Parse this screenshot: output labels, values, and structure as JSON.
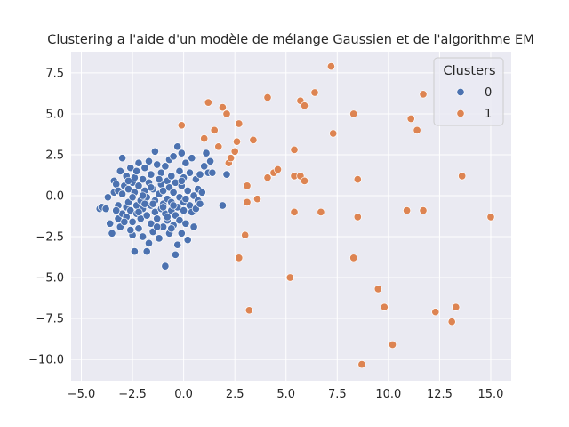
{
  "chart_data": {
    "type": "scatter",
    "title": "Clustering a l'aide d'un modèle de mélange Gaussien et de l'algorithme EM",
    "xlabel": "",
    "ylabel": "",
    "xlim": [
      -5.5,
      16.0
    ],
    "ylim": [
      -11.3,
      8.8
    ],
    "xticks": [
      -5.0,
      -2.5,
      0.0,
      2.5,
      5.0,
      7.5,
      10.0,
      12.5,
      15.0
    ],
    "xtick_labels": [
      "−5.0",
      "−2.5",
      "0.0",
      "2.5",
      "5.0",
      "7.5",
      "10.0",
      "12.5",
      "15.0"
    ],
    "yticks": [
      7.5,
      5.0,
      2.5,
      0.0,
      -2.5,
      -5.0,
      -7.5,
      -10.0
    ],
    "ytick_labels": [
      "7.5",
      "5.0",
      "2.5",
      "0.0",
      "−2.5",
      "−5.0",
      "−7.5",
      "−10.0"
    ],
    "grid": true,
    "legend": {
      "title": "Clusters",
      "placement": "top-right"
    },
    "series": [
      {
        "name": "0",
        "color": "#4c72b0",
        "points": [
          [
            -4.1,
            -0.8
          ],
          [
            -4.0,
            -0.7
          ],
          [
            -3.8,
            -0.8
          ],
          [
            -3.7,
            -0.1
          ],
          [
            -3.6,
            -1.7
          ],
          [
            -3.5,
            -2.3
          ],
          [
            -3.4,
            0.9
          ],
          [
            -3.4,
            0.2
          ],
          [
            -3.3,
            0.7
          ],
          [
            -3.2,
            -1.4
          ],
          [
            -3.2,
            -0.6
          ],
          [
            -3.2,
            0.3
          ],
          [
            -3.1,
            1.5
          ],
          [
            -3.1,
            -1.9
          ],
          [
            -3.0,
            2.3
          ],
          [
            -3.0,
            -1.1
          ],
          [
            -3.0,
            0.1
          ],
          [
            -2.9,
            0.6
          ],
          [
            -2.8,
            -0.7
          ],
          [
            -2.8,
            1.2
          ],
          [
            -2.8,
            -1.3
          ],
          [
            -2.7,
            0.4
          ],
          [
            -2.7,
            -0.4
          ],
          [
            -2.6,
            1.7
          ],
          [
            -2.6,
            -0.9
          ],
          [
            -2.5,
            -1.6
          ],
          [
            -2.5,
            0.8
          ],
          [
            -2.5,
            -2.4
          ],
          [
            -2.4,
            -3.4
          ],
          [
            -2.4,
            1.1
          ],
          [
            -2.4,
            0.2
          ],
          [
            -2.3,
            -0.6
          ],
          [
            -2.3,
            -1.1
          ],
          [
            -2.3,
            1.5
          ],
          [
            -2.2,
            2.0
          ],
          [
            -2.2,
            -2.0
          ],
          [
            -2.2,
            0.6
          ],
          [
            -2.1,
            -0.3
          ],
          [
            -2.1,
            -1.4
          ],
          [
            -2.0,
            1.0
          ],
          [
            -2.0,
            -0.8
          ],
          [
            -2.0,
            -2.5
          ],
          [
            -1.9,
            0.3
          ],
          [
            -1.9,
            1.7
          ],
          [
            -1.8,
            -1.2
          ],
          [
            -1.8,
            -3.4
          ],
          [
            -1.8,
            -0.1
          ],
          [
            -1.7,
            -2.9
          ],
          [
            -1.7,
            0.8
          ],
          [
            -1.7,
            2.1
          ],
          [
            -1.6,
            -0.6
          ],
          [
            -1.6,
            -1.7
          ],
          [
            -1.6,
            1.3
          ],
          [
            -1.5,
            0.4
          ],
          [
            -1.5,
            -2.2
          ],
          [
            -1.4,
            -1.0
          ],
          [
            -1.4,
            2.7
          ],
          [
            -1.4,
            -0.3
          ],
          [
            -1.3,
            1.9
          ],
          [
            -1.3,
            -1.4
          ],
          [
            -1.2,
            0.1
          ],
          [
            -1.2,
            -2.6
          ],
          [
            -1.1,
            0.7
          ],
          [
            -1.1,
            -0.8
          ],
          [
            -1.1,
            1.4
          ],
          [
            -1.0,
            -1.9
          ],
          [
            -1.0,
            0.3
          ],
          [
            -1.0,
            -0.5
          ],
          [
            -0.9,
            -1.1
          ],
          [
            -0.9,
            1.8
          ],
          [
            -0.9,
            -4.3
          ],
          [
            -0.8,
            0.9
          ],
          [
            -0.8,
            -1.5
          ],
          [
            -0.8,
            -0.2
          ],
          [
            -0.7,
            2.2
          ],
          [
            -0.7,
            -2.3
          ],
          [
            -0.7,
            0.5
          ],
          [
            -0.6,
            -0.9
          ],
          [
            -0.6,
            1.2
          ],
          [
            -0.6,
            -0.4
          ],
          [
            -0.5,
            -1.8
          ],
          [
            -0.5,
            0.2
          ],
          [
            -0.5,
            2.4
          ],
          [
            -0.4,
            -1.2
          ],
          [
            -0.4,
            0.8
          ],
          [
            -0.4,
            -3.6
          ],
          [
            -0.3,
            3.0
          ],
          [
            -0.3,
            -0.7
          ],
          [
            -0.3,
            -3.0
          ],
          [
            -0.2,
            1.5
          ],
          [
            -0.2,
            -0.1
          ],
          [
            -0.2,
            -1.5
          ],
          [
            -0.1,
            0.6
          ],
          [
            -0.1,
            2.6
          ],
          [
            -0.1,
            -2.3
          ],
          [
            0.0,
            -0.9
          ],
          [
            0.0,
            1.1
          ],
          [
            0.0,
            -0.4
          ],
          [
            0.1,
            2.0
          ],
          [
            0.1,
            -1.7
          ],
          [
            0.2,
            0.3
          ],
          [
            0.2,
            -2.7
          ],
          [
            0.3,
            -0.6
          ],
          [
            0.3,
            1.4
          ],
          [
            0.4,
            2.3
          ],
          [
            0.4,
            -1.0
          ],
          [
            0.5,
            0.0
          ],
          [
            0.6,
            -0.8
          ],
          [
            0.6,
            1.0
          ],
          [
            0.7,
            0.4
          ],
          [
            0.7,
            -0.3
          ],
          [
            0.8,
            1.3
          ],
          [
            0.8,
            -0.5
          ],
          [
            0.9,
            0.2
          ],
          [
            1.0,
            1.8
          ],
          [
            1.1,
            2.6
          ],
          [
            1.2,
            1.4
          ],
          [
            1.3,
            2.1
          ],
          [
            1.4,
            1.4
          ],
          [
            1.9,
            -0.6
          ],
          [
            2.1,
            1.3
          ],
          [
            -3.3,
            -0.9
          ],
          [
            -2.9,
            -1.6
          ],
          [
            -2.6,
            -2.1
          ],
          [
            -2.0,
            0.0
          ],
          [
            -1.5,
            -0.5
          ],
          [
            -1.2,
            1.0
          ],
          [
            -0.8,
            -1.3
          ],
          [
            0.1,
            -0.2
          ],
          [
            0.5,
            -1.9
          ],
          [
            -2.5,
            -0.1
          ],
          [
            -1.6,
            0.5
          ],
          [
            -1.9,
            -0.5
          ],
          [
            -1.0,
            -0.7
          ],
          [
            -0.5,
            -0.6
          ],
          [
            -0.1,
            0.9
          ],
          [
            -2.2,
            -1.0
          ],
          [
            -1.3,
            -1.9
          ],
          [
            -2.7,
            0.9
          ],
          [
            -0.6,
            -2.0
          ]
        ]
      },
      {
        "name": "1",
        "color": "#dd8452",
        "points": [
          [
            -0.1,
            4.3
          ],
          [
            1.0,
            3.5
          ],
          [
            1.2,
            5.7
          ],
          [
            1.5,
            4.0
          ],
          [
            1.7,
            3.0
          ],
          [
            1.9,
            5.4
          ],
          [
            2.1,
            5.0
          ],
          [
            2.2,
            2.0
          ],
          [
            2.3,
            2.3
          ],
          [
            2.5,
            2.7
          ],
          [
            2.6,
            3.3
          ],
          [
            2.7,
            4.4
          ],
          [
            2.7,
            -3.8
          ],
          [
            3.0,
            -2.4
          ],
          [
            3.1,
            0.6
          ],
          [
            3.1,
            -0.4
          ],
          [
            3.2,
            -7.0
          ],
          [
            3.4,
            3.4
          ],
          [
            3.6,
            -0.2
          ],
          [
            4.1,
            1.1
          ],
          [
            4.1,
            6.0
          ],
          [
            4.4,
            1.4
          ],
          [
            4.6,
            1.6
          ],
          [
            5.2,
            -5.0
          ],
          [
            5.4,
            -1.0
          ],
          [
            5.4,
            1.2
          ],
          [
            5.4,
            2.8
          ],
          [
            5.7,
            1.2
          ],
          [
            5.7,
            5.8
          ],
          [
            5.9,
            0.9
          ],
          [
            5.9,
            5.5
          ],
          [
            6.4,
            6.3
          ],
          [
            6.7,
            -1.0
          ],
          [
            7.2,
            7.9
          ],
          [
            7.3,
            3.8
          ],
          [
            8.3,
            5.0
          ],
          [
            8.3,
            -3.8
          ],
          [
            8.5,
            1.0
          ],
          [
            8.5,
            -1.3
          ],
          [
            8.7,
            -10.3
          ],
          [
            9.5,
            -5.7
          ],
          [
            9.8,
            -6.8
          ],
          [
            10.2,
            -9.1
          ],
          [
            10.9,
            -0.9
          ],
          [
            11.1,
            4.7
          ],
          [
            11.4,
            4.0
          ],
          [
            11.7,
            6.2
          ],
          [
            11.7,
            -0.9
          ],
          [
            12.3,
            -7.1
          ],
          [
            13.1,
            -7.7
          ],
          [
            13.3,
            -6.8
          ],
          [
            13.6,
            1.2
          ],
          [
            15.0,
            -1.3
          ]
        ]
      }
    ]
  }
}
